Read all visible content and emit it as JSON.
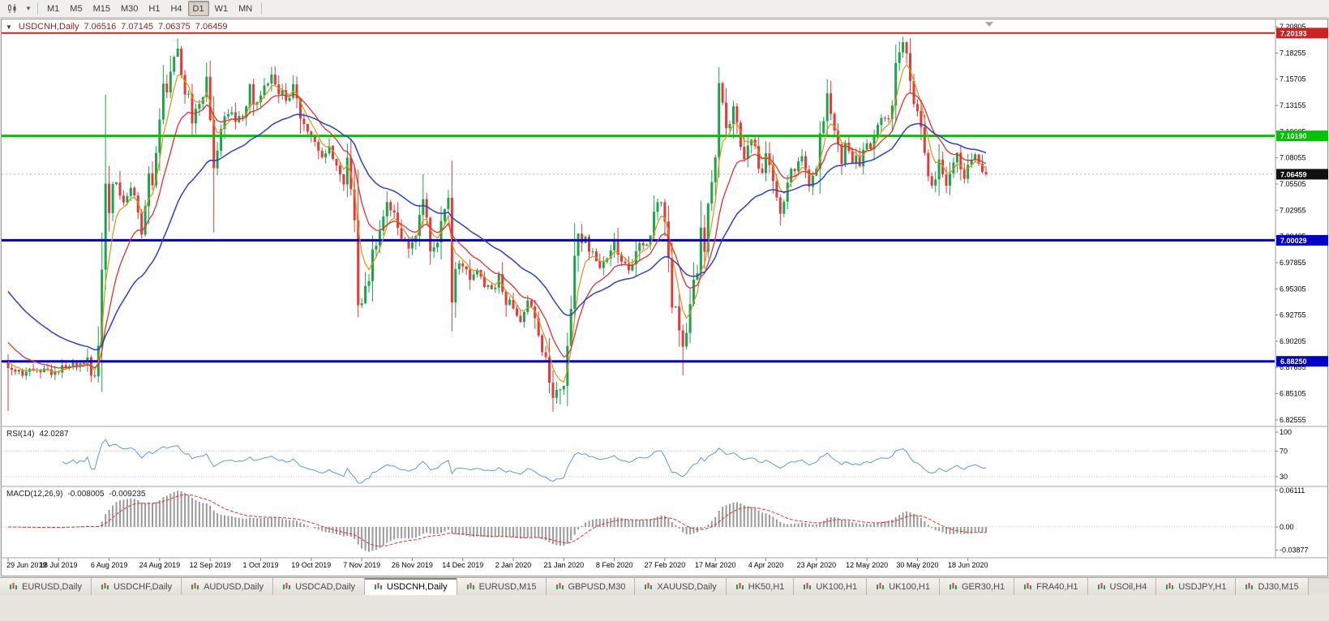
{
  "app": {
    "toolbar": {
      "timeframes": [
        "M1",
        "M5",
        "M15",
        "M30",
        "H1",
        "H4",
        "D1",
        "W1",
        "MN"
      ],
      "active_timeframe": "D1"
    },
    "tabs": [
      {
        "label": "EURUSD,Daily",
        "active": false
      },
      {
        "label": "USDCHF,Daily",
        "active": false
      },
      {
        "label": "AUDUSD,Daily",
        "active": false
      },
      {
        "label": "USDCAD,Daily",
        "active": false
      },
      {
        "label": "USDCNH,Daily",
        "active": true
      },
      {
        "label": "EURUSD,M15",
        "active": false
      },
      {
        "label": "GBPUSD,M30",
        "active": false
      },
      {
        "label": "XAUUSD,Daily",
        "active": false
      },
      {
        "label": "HK50,H1",
        "active": false
      },
      {
        "label": "UK100,H1",
        "active": false
      },
      {
        "label": "UK100,H1",
        "active": false
      },
      {
        "label": "GER30,H1",
        "active": false
      },
      {
        "label": "FRA40,H1",
        "active": false
      },
      {
        "label": "USOil,H4",
        "active": false
      },
      {
        "label": "USDJPY,H1",
        "active": false
      },
      {
        "label": "DJ30,M15",
        "active": false
      }
    ]
  },
  "chart": {
    "header": {
      "symbol_period": "USDCNH,Daily",
      "open": "7.06516",
      "high": "7.07145",
      "low": "7.06375",
      "close": "7.06459"
    },
    "rsi_label": {
      "name": "RSI(14)",
      "value": "42.0287"
    },
    "macd_label": {
      "name": "MACD(12,26,9)",
      "macd_value": "-0.008005",
      "signal_value": "-0.009235"
    }
  },
  "chart_data": {
    "type": "candlestick",
    "symbol": "USDCNH",
    "timeframe": "Daily",
    "title": "USDCNH,Daily",
    "x_labels": [
      "29 Jun 2019",
      "18 Jul 2019",
      "6 Aug 2019",
      "24 Aug 2019",
      "12 Sep 2019",
      "1 Oct 2019",
      "19 Oct 2019",
      "7 Nov 2019",
      "26 Nov 2019",
      "14 Dec 2019",
      "2 Jan 2020",
      "21 Jan 2020",
      "8 Feb 2020",
      "27 Feb 2020",
      "17 Mar 2020",
      "4 Apr 2020",
      "23 Apr 2020",
      "12 May 2020",
      "30 May 2020",
      "18 Jun 2020"
    ],
    "candles_per_label": 14,
    "candle_count": 272,
    "price_axis": {
      "top_price": 7.2152,
      "bottom_price": 6.8207,
      "ticks": [
        "7.20805",
        "7.18255",
        "7.15705",
        "7.13155",
        "7.10605",
        "7.08055",
        "7.05505",
        "7.02955",
        "7.00405",
        "6.97855",
        "6.95305",
        "6.92755",
        "6.90205",
        "6.87655",
        "6.85105",
        "6.82555"
      ]
    },
    "horizontal_lines": [
      {
        "price": 7.20193,
        "label": "7.20193",
        "color": "#CC2222",
        "width": 2
      },
      {
        "price": 7.1019,
        "label": "7.10190",
        "color": "#00C400",
        "width": 3
      },
      {
        "price": 7.00029,
        "label": "7.00029",
        "color": "#0000CC",
        "width": 3
      },
      {
        "price": 6.8825,
        "label": "6.88250",
        "color": "#0000CC",
        "width": 3
      }
    ],
    "current_price": {
      "price": 7.06459,
      "label": "7.06459"
    },
    "moving_averages": [
      {
        "name": "ma-fast",
        "period": 5,
        "seed": 6.885,
        "color": "#D99414",
        "width": 1.2
      },
      {
        "name": "ma-mid",
        "period": 13,
        "seed": 6.905,
        "color": "#E03030",
        "width": 1.3
      },
      {
        "name": "ma-slow",
        "period": 34,
        "seed": 6.955,
        "color": "#2B3FD0",
        "width": 1.5
      }
    ],
    "rsi": {
      "period": 14,
      "value": 42.0287,
      "levels": [
        100,
        70,
        30
      ],
      "axis_labels": [
        "100",
        "70",
        "30"
      ]
    },
    "macd": {
      "params": "12,26,9",
      "max": 0.06111,
      "min": -0.03877,
      "axis_labels": [
        "0.06111",
        "0.00",
        "-0.03877"
      ]
    },
    "colors": {
      "up_candle": "#1CA44C",
      "down_candle": "#E23B3B",
      "rsi_line": "#5B9BD5",
      "macd_hist": "#9A9A9A",
      "macd_signal": "#E03030",
      "badge_current": "#111111",
      "axis_text": "#000000"
    },
    "price_anchors": [
      [
        0,
        6.876
      ],
      [
        4,
        6.871
      ],
      [
        8,
        6.8755
      ],
      [
        12,
        6.8725
      ],
      [
        16,
        6.878
      ],
      [
        20,
        6.8795
      ],
      [
        24,
        6.8845
      ],
      [
        25,
        6.9
      ],
      [
        26,
        6.958
      ],
      [
        27,
        7.04
      ],
      [
        28,
        7.042
      ],
      [
        30,
        7.058
      ],
      [
        32,
        7.035
      ],
      [
        34,
        7.058
      ],
      [
        36,
        7.028
      ],
      [
        37,
        7.006
      ],
      [
        38,
        7.035
      ],
      [
        40,
        7.068
      ],
      [
        42,
        7.118
      ],
      [
        44,
        7.16
      ],
      [
        46,
        7.182
      ],
      [
        47,
        7.19
      ],
      [
        48,
        7.16
      ],
      [
        50,
        7.135
      ],
      [
        51,
        7.118
      ],
      [
        53,
        7.132
      ],
      [
        55,
        7.156
      ],
      [
        57,
        7.068
      ],
      [
        59,
        7.108
      ],
      [
        61,
        7.13
      ],
      [
        63,
        7.116
      ],
      [
        65,
        7.122
      ],
      [
        67,
        7.146
      ],
      [
        69,
        7.132
      ],
      [
        71,
        7.15
      ],
      [
        73,
        7.164
      ],
      [
        75,
        7.146
      ],
      [
        77,
        7.136
      ],
      [
        79,
        7.146
      ],
      [
        81,
        7.12
      ],
      [
        83,
        7.102
      ],
      [
        85,
        7.094
      ],
      [
        87,
        7.086
      ],
      [
        89,
        7.092
      ],
      [
        91,
        7.072
      ],
      [
        93,
        7.064
      ],
      [
        95,
        7.058
      ],
      [
        96,
        7.01
      ],
      [
        97,
        6.945
      ],
      [
        98,
        6.938
      ],
      [
        99,
        6.958
      ],
      [
        101,
        6.986
      ],
      [
        103,
        7.018
      ],
      [
        105,
        7.034
      ],
      [
        107,
        7.024
      ],
      [
        109,
        7.0
      ],
      [
        111,
        6.99
      ],
      [
        113,
        7.004
      ],
      [
        115,
        7.04
      ],
      [
        116,
        7.022
      ],
      [
        117,
        6.986
      ],
      [
        119,
        7.0
      ],
      [
        121,
        7.034
      ],
      [
        122,
        7.042
      ],
      [
        123,
        6.938
      ],
      [
        124,
        6.968
      ],
      [
        126,
        6.978
      ],
      [
        128,
        6.962
      ],
      [
        130,
        6.974
      ],
      [
        132,
        6.958
      ],
      [
        134,
        6.952
      ],
      [
        136,
        6.964
      ],
      [
        138,
        6.944
      ],
      [
        140,
        6.934
      ],
      [
        142,
        6.924
      ],
      [
        144,
        6.94
      ],
      [
        146,
        6.928
      ],
      [
        148,
        6.898
      ],
      [
        150,
        6.87
      ],
      [
        151,
        6.852
      ],
      [
        152,
        6.858
      ],
      [
        153,
        6.846
      ],
      [
        154,
        6.862
      ],
      [
        155,
        6.9
      ],
      [
        156,
        6.942
      ],
      [
        157,
        6.968
      ],
      [
        158,
        6.992
      ],
      [
        160,
        7.002
      ],
      [
        162,
        6.986
      ],
      [
        164,
        6.974
      ],
      [
        166,
        6.986
      ],
      [
        168,
        6.998
      ],
      [
        170,
        6.984
      ],
      [
        172,
        6.974
      ],
      [
        174,
        6.986
      ],
      [
        176,
        6.996
      ],
      [
        178,
        7.01
      ],
      [
        180,
        7.036
      ],
      [
        181,
        7.048
      ],
      [
        182,
        7.022
      ],
      [
        183,
        6.982
      ],
      [
        184,
        6.952
      ],
      [
        185,
        6.932
      ],
      [
        186,
        6.91
      ],
      [
        187,
        6.896
      ],
      [
        188,
        6.916
      ],
      [
        189,
        6.932
      ],
      [
        190,
        6.958
      ],
      [
        191,
        6.978
      ],
      [
        192,
        7.0
      ],
      [
        193,
        7.012
      ],
      [
        194,
        7.024
      ],
      [
        195,
        7.036
      ],
      [
        196,
        7.098
      ],
      [
        197,
        7.158
      ],
      [
        198,
        7.13
      ],
      [
        199,
        7.108
      ],
      [
        200,
        7.122
      ],
      [
        201,
        7.138
      ],
      [
        202,
        7.114
      ],
      [
        203,
        7.092
      ],
      [
        204,
        7.076
      ],
      [
        205,
        7.09
      ],
      [
        206,
        7.104
      ],
      [
        207,
        7.088
      ],
      [
        208,
        7.072
      ],
      [
        209,
        7.06
      ],
      [
        210,
        7.088
      ],
      [
        211,
        7.076
      ],
      [
        212,
        7.052
      ],
      [
        213,
        7.036
      ],
      [
        214,
        7.024
      ],
      [
        215,
        7.04
      ],
      [
        216,
        7.056
      ],
      [
        217,
        7.068
      ],
      [
        218,
        7.062
      ],
      [
        219,
        7.076
      ],
      [
        220,
        7.082
      ],
      [
        221,
        7.07
      ],
      [
        222,
        7.058
      ],
      [
        223,
        7.07
      ],
      [
        224,
        7.082
      ],
      [
        225,
        7.096
      ],
      [
        226,
        7.12
      ],
      [
        227,
        7.146
      ],
      [
        228,
        7.128
      ],
      [
        229,
        7.108
      ],
      [
        230,
        7.092
      ],
      [
        231,
        7.08
      ],
      [
        232,
        7.092
      ],
      [
        233,
        7.086
      ],
      [
        234,
        7.072
      ],
      [
        235,
        7.082
      ],
      [
        236,
        7.074
      ],
      [
        237,
        7.086
      ],
      [
        238,
        7.094
      ],
      [
        239,
        7.084
      ],
      [
        240,
        7.096
      ],
      [
        241,
        7.108
      ],
      [
        242,
        7.12
      ],
      [
        243,
        7.108
      ],
      [
        244,
        7.122
      ],
      [
        245,
        7.14
      ],
      [
        246,
        7.162
      ],
      [
        247,
        7.178
      ],
      [
        248,
        7.192
      ],
      [
        249,
        7.176
      ],
      [
        250,
        7.156
      ],
      [
        251,
        7.142
      ],
      [
        252,
        7.128
      ],
      [
        253,
        7.11
      ],
      [
        254,
        7.092
      ],
      [
        255,
        7.072
      ],
      [
        256,
        7.058
      ],
      [
        257,
        7.066
      ],
      [
        258,
        7.076
      ],
      [
        259,
        7.062
      ],
      [
        260,
        7.052
      ],
      [
        261,
        7.064
      ],
      [
        262,
        7.076
      ],
      [
        263,
        7.082
      ],
      [
        264,
        7.072
      ],
      [
        265,
        7.06
      ],
      [
        266,
        7.07
      ],
      [
        267,
        7.078
      ],
      [
        268,
        7.084
      ],
      [
        269,
        7.076
      ],
      [
        270,
        7.068
      ],
      [
        271,
        7.0646
      ]
    ],
    "wick_overrides": [
      {
        "i": 0,
        "low": 6.834
      },
      {
        "i": 27,
        "high": 7.142
      },
      {
        "i": 47,
        "high": 7.1965
      },
      {
        "i": 57,
        "low": 7.008
      },
      {
        "i": 97,
        "low": 6.9255
      },
      {
        "i": 115,
        "high": 7.0645
      },
      {
        "i": 123,
        "low": 6.9115
      },
      {
        "i": 151,
        "low": 6.8335
      },
      {
        "i": 153,
        "low": 6.8405
      },
      {
        "i": 187,
        "low": 6.869
      },
      {
        "i": 197,
        "high": 7.1685
      },
      {
        "i": 246,
        "high": 7.1905
      },
      {
        "i": 248,
        "high": 7.1985
      }
    ]
  }
}
